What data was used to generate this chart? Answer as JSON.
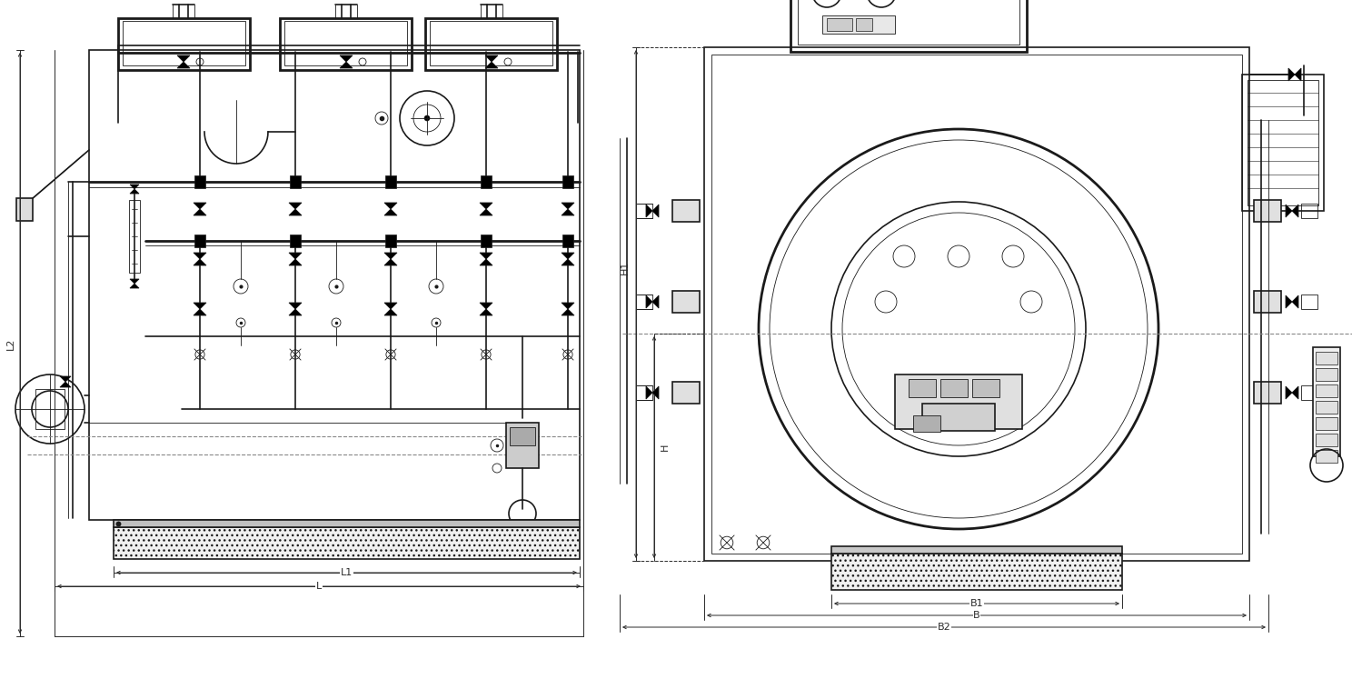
{
  "bg_color": "#ffffff",
  "lc": "#1a1a1a",
  "dc": "#2a2a2a",
  "fig_width": 14.88,
  "fig_height": 7.47,
  "dpi": 100,
  "labels": {
    "L1": "L1",
    "L": "L",
    "L2": "L2",
    "H1": "H1",
    "H": "H",
    "B1": "B1",
    "B": "B",
    "B2": "B2"
  },
  "lw_main": 1.2,
  "lw_thick": 2.0,
  "lw_thin": 0.6,
  "lw_dim": 0.7
}
